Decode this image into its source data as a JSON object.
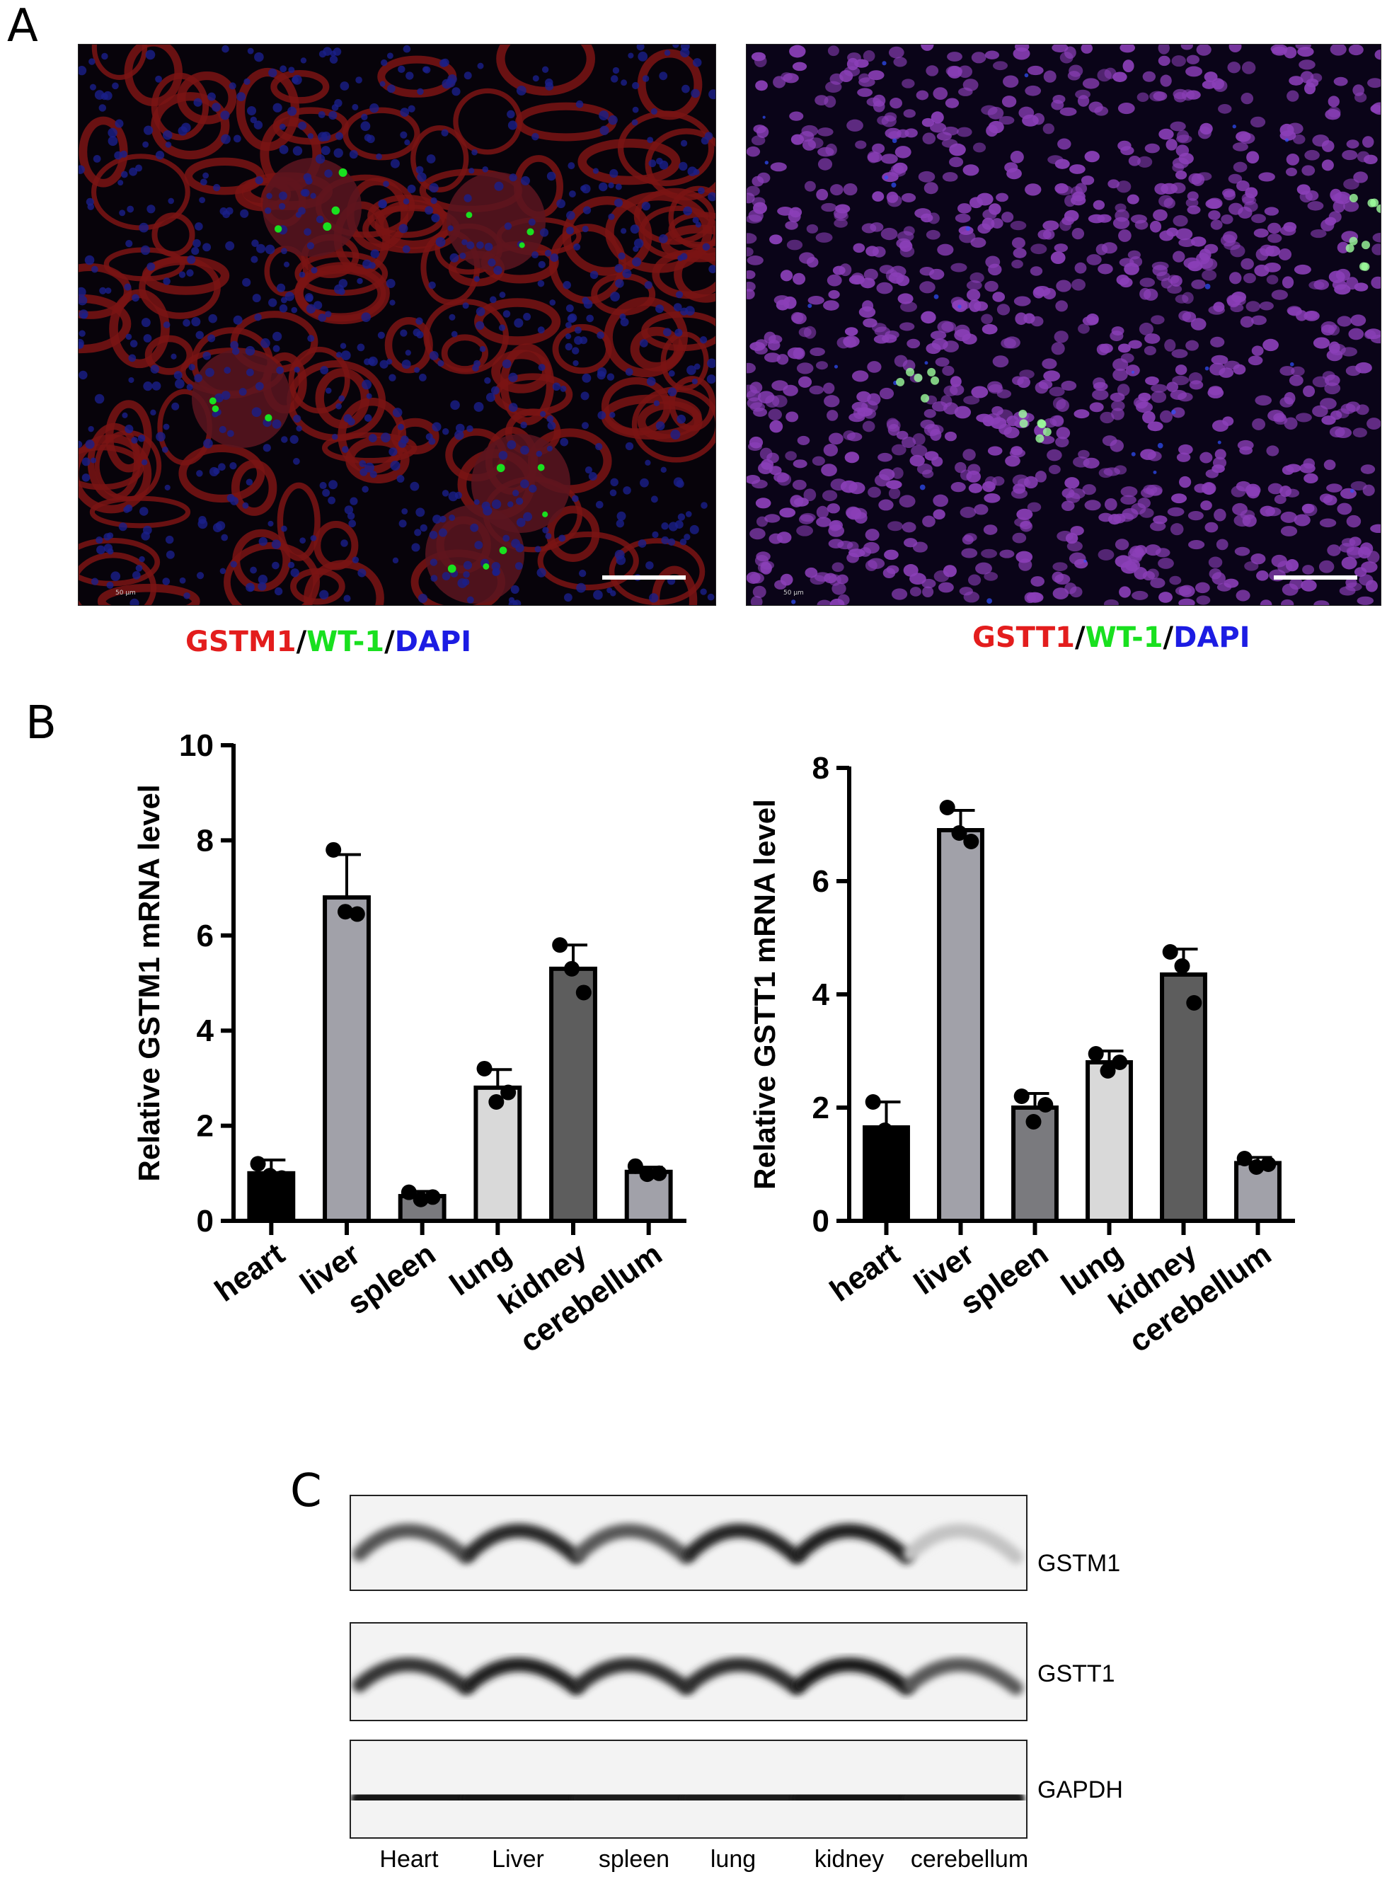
{
  "panels": {
    "a_label": "A",
    "b_label": "B",
    "c_label": "C"
  },
  "micrographs": [
    {
      "stain": {
        "marker": "GSTM1",
        "sep1": "/",
        "wt": "WT-1",
        "sep2": "/",
        "dapi": "DAPI"
      },
      "scale_text": "50 µm",
      "colors": {
        "bg": "#07030a",
        "tubule": "#7a1414",
        "nuclei": "#1a1f8a",
        "marker": "#19e01f"
      }
    },
    {
      "stain": {
        "marker": "GSTT1",
        "sep1": "/",
        "wt": "WT-1",
        "sep2": "/",
        "dapi": "DAPI"
      },
      "scale_text": "50 µm",
      "colors": {
        "bg": "#0a0418",
        "tubule": "#5a2a7a",
        "nuclei": "#8b3fb8",
        "marker": "#9dff9d"
      }
    }
  ],
  "chart_data": [
    {
      "type": "bar",
      "categories": [
        "heart",
        "liver",
        "spleen",
        "lung",
        "kidney",
        "cerebellum"
      ],
      "values": [
        1.0,
        6.8,
        0.52,
        2.8,
        5.3,
        1.03
      ],
      "errors": [
        0.28,
        0.9,
        0.1,
        0.38,
        0.5,
        0.1
      ],
      "points": [
        [
          1.2,
          0.95,
          0.9
        ],
        [
          7.8,
          6.5,
          6.45
        ],
        [
          0.6,
          0.45,
          0.5
        ],
        [
          3.2,
          2.5,
          2.7
        ],
        [
          5.8,
          5.3,
          4.8
        ],
        [
          1.15,
          0.98,
          1.0
        ]
      ],
      "bar_colors": [
        "#000000",
        "#a1a1a9",
        "#7a7a7e",
        "#d9d9d9",
        "#5d5d5d",
        "#a1a1a9"
      ],
      "ylabel": "Relative GSTM1 mRNA level",
      "ylim": [
        0,
        10
      ],
      "yticks": [
        "0",
        "2",
        "4",
        "6",
        "8",
        "10"
      ]
    },
    {
      "type": "bar",
      "categories": [
        "heart",
        "liver",
        "spleen",
        "lung",
        "kidney",
        "cerebellum"
      ],
      "values": [
        1.65,
        6.9,
        2.0,
        2.8,
        4.35,
        1.02
      ],
      "errors": [
        0.45,
        0.35,
        0.25,
        0.2,
        0.45,
        0.1
      ],
      "points": [
        [
          2.1,
          1.6,
          1.25
        ],
        [
          7.3,
          6.85,
          6.7
        ],
        [
          2.2,
          1.75,
          2.05
        ],
        [
          2.95,
          2.65,
          2.8
        ],
        [
          4.75,
          4.5,
          3.85
        ],
        [
          1.1,
          0.95,
          1.0
        ]
      ],
      "bar_colors": [
        "#000000",
        "#a1a1a9",
        "#7a7a7e",
        "#d9d9d9",
        "#5d5d5d",
        "#a1a1a9"
      ],
      "ylabel": "Relative GSTT1 mRNA level",
      "ylim": [
        0,
        8
      ],
      "yticks": [
        "0",
        "2",
        "4",
        "6",
        "8"
      ]
    }
  ],
  "blot": {
    "rows": [
      {
        "label": "GSTM1",
        "intensity": [
          0.72,
          0.9,
          0.7,
          0.92,
          0.95,
          0.25
        ]
      },
      {
        "label": "GSTT1",
        "intensity": [
          0.85,
          0.95,
          0.88,
          0.88,
          0.97,
          0.7
        ]
      },
      {
        "label": "GAPDH",
        "intensity": [
          0.97,
          0.97,
          0.95,
          0.95,
          0.97,
          0.95
        ]
      }
    ],
    "lanes": [
      "Heart",
      "Liver",
      "spleen",
      "lung",
      "kidney",
      "cerebellum"
    ]
  }
}
